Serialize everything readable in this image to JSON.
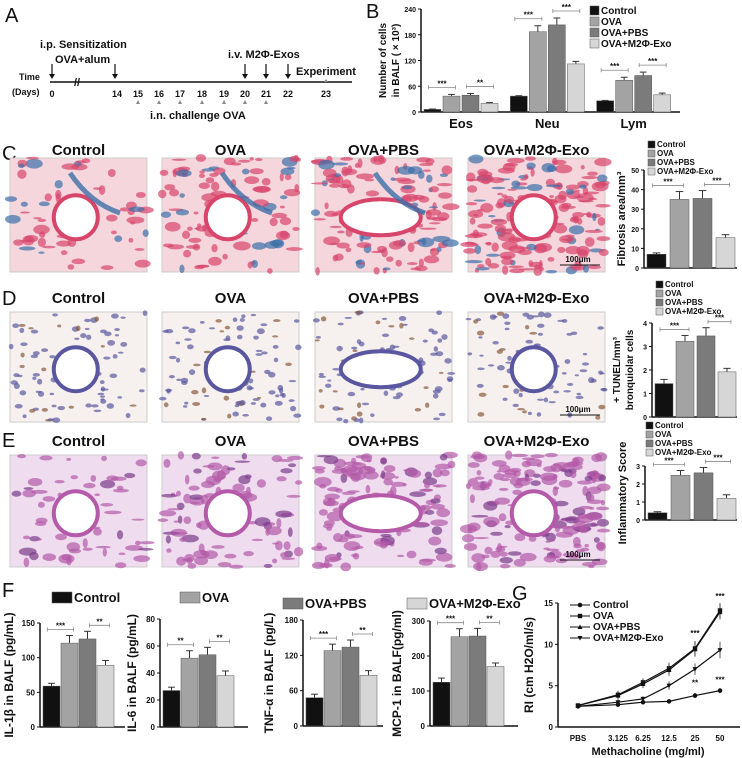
{
  "panel_letters": {
    "a": "A",
    "b": "B",
    "c": "C",
    "d": "D",
    "e": "E",
    "f": "F",
    "g": "G"
  },
  "timeline": {
    "sensitization": "i.p. Sensitization",
    "sensitization_agent": "OVA+alum",
    "treatment": "i.v. M2Φ-Exos",
    "experiment": "Experiment",
    "time_label": "Time",
    "days_label": "(Days)",
    "challenge": "i.n. challenge  OVA",
    "days": [
      "0",
      "14",
      "15",
      "16",
      "17",
      "18",
      "19",
      "20",
      "21",
      "22",
      "23"
    ]
  },
  "histology": {
    "groups": [
      "Control",
      "OVA",
      "OVA+PBS",
      "OVA+M2Φ-Exo"
    ],
    "scale_bar": "100μm",
    "rows": [
      {
        "stain": "masson",
        "colors": [
          "#f4d6dc",
          "#d8456b",
          "#3c6fa8"
        ]
      },
      {
        "stain": "tunel",
        "colors": [
          "#f6f1ee",
          "#5a57a0",
          "#8a5a3c"
        ]
      },
      {
        "stain": "he",
        "colors": [
          "#efdcef",
          "#b45aa8",
          "#7c3a8c"
        ]
      }
    ]
  },
  "colors": {
    "Control": "#111111",
    "OVA": "#a3a3a3",
    "OVA+PBS": "#7b7b7b",
    "OVA+M2Φ-Exo": "#d6d6d6"
  },
  "chart_data": [
    {
      "id": "B",
      "type": "bar",
      "categories": [
        "Eos",
        "Neu",
        "Lym"
      ],
      "series": [
        {
          "name": "Control",
          "values": [
            6,
            37,
            26
          ],
          "errors": [
            1,
            1,
            1
          ]
        },
        {
          "name": "OVA",
          "values": [
            37,
            187,
            74
          ],
          "errors": [
            4,
            14,
            7
          ]
        },
        {
          "name": "OVA+PBS",
          "values": [
            39,
            203,
            85
          ],
          "errors": [
            4,
            16,
            8
          ]
        },
        {
          "name": "OVA+M2Φ-Exo",
          "values": [
            20,
            112,
            40
          ],
          "errors": [
            2,
            6,
            4
          ]
        }
      ],
      "significance": [
        [
          "***",
          "**"
        ],
        [
          "***",
          "***"
        ],
        [
          "***",
          "***"
        ]
      ],
      "ylabel": [
        "Number of cells",
        "in BALF ( × 10³)"
      ],
      "ylim": [
        0,
        240
      ],
      "yticks": [
        0,
        60,
        120,
        180,
        240
      ],
      "legend": "top-right"
    },
    {
      "id": "C",
      "type": "bar",
      "categories": [
        "Control",
        "OVA",
        "OVA+PBS",
        "OVA+M2Φ-Exo"
      ],
      "values": [
        7,
        35,
        35.5,
        15.5
      ],
      "errors": [
        0.7,
        4,
        4,
        1.5
      ],
      "significance": [
        "***",
        "***"
      ],
      "ylabel": [
        "Fibrosis area/mm³"
      ],
      "ylim": [
        0,
        50
      ],
      "yticks": [
        0,
        10,
        20,
        30,
        40,
        50
      ],
      "legend": "top"
    },
    {
      "id": "D",
      "type": "bar",
      "categories": [
        "Control",
        "OVA",
        "OVA+PBS",
        "OVA+M2Φ-Exo"
      ],
      "values": [
        1.42,
        3.22,
        3.45,
        1.92
      ],
      "errors": [
        0.18,
        0.25,
        0.35,
        0.15
      ],
      "significance": [
        "***",
        "***"
      ],
      "ylabel": [
        "+ TUNEL/mm³",
        "bronquiolar cells"
      ],
      "ylim": [
        0,
        4
      ],
      "yticks": [
        0,
        1,
        2,
        3,
        4
      ],
      "legend": "top"
    },
    {
      "id": "E",
      "type": "bar",
      "categories": [
        "Control",
        "OVA",
        "OVA+PBS",
        "OVA+M2Φ-Exo"
      ],
      "values": [
        0.4,
        2.48,
        2.62,
        1.2
      ],
      "errors": [
        0.06,
        0.27,
        0.3,
        0.2
      ],
      "significance": [
        "***",
        "***"
      ],
      "ylabel": [
        "Inflammatory Score"
      ],
      "ylim": [
        0,
        3
      ],
      "yticks": [
        0,
        1,
        2,
        3
      ],
      "legend": "top"
    },
    {
      "id": "F1",
      "type": "bar",
      "categories": [
        "Control",
        "OVA",
        "OVA+PBS",
        "OVA+M2Φ-Exo"
      ],
      "values": [
        59,
        121,
        127,
        89
      ],
      "errors": [
        4,
        11,
        11,
        7
      ],
      "significance": [
        "***",
        "**"
      ],
      "ylabel": [
        "IL-1β in BALF (pg/mL)"
      ],
      "ylim": [
        0,
        150
      ],
      "yticks": [
        0,
        50,
        100,
        150
      ]
    },
    {
      "id": "F2",
      "type": "bar",
      "categories": [
        "Control",
        "OVA",
        "OVA+PBS",
        "OVA+M2Φ-Exo"
      ],
      "values": [
        27,
        51,
        53.5,
        38
      ],
      "errors": [
        2.5,
        5.5,
        5.5,
        3.5
      ],
      "significance": [
        "**",
        "**"
      ],
      "ylabel": [
        "IL-6 in BALF (pg/mL)"
      ],
      "ylim": [
        0,
        80
      ],
      "yticks": [
        0,
        20,
        40,
        60,
        80
      ]
    },
    {
      "id": "F3",
      "type": "bar",
      "categories": [
        "Control",
        "OVA",
        "OVA+PBS",
        "OVA+M2Φ-Exo"
      ],
      "values": [
        48,
        128,
        134,
        86
      ],
      "errors": [
        6,
        11,
        12,
        8
      ],
      "significance": [
        "***",
        "**"
      ],
      "ylabel": [
        "TNF-α in BALF (pg/L)"
      ],
      "ylim": [
        0,
        180
      ],
      "yticks": [
        0,
        60,
        120,
        180
      ]
    },
    {
      "id": "F4",
      "type": "bar",
      "categories": [
        "Control",
        "OVA",
        "OVA+PBS",
        "OVA+M2Φ-Exo"
      ],
      "values": [
        125,
        255,
        257,
        170
      ],
      "errors": [
        12,
        23,
        22,
        10
      ],
      "significance": [
        "***",
        "**"
      ],
      "ylabel": [
        "MCP-1 in BALF(pg/ml)"
      ],
      "ylim": [
        0,
        300
      ],
      "yticks": [
        0,
        100,
        200,
        300
      ],
      "legend": "top (shared across F)"
    },
    {
      "id": "G",
      "type": "line",
      "x": [
        "PBS",
        "3.125",
        "6.25",
        "12.5",
        "25",
        "50"
      ],
      "series": [
        {
          "name": "Control",
          "marker": "circle",
          "values": [
            2.5,
            2.7,
            3.0,
            3.1,
            3.8,
            4.4
          ],
          "errors": [
            0.2,
            0.2,
            0.2,
            0.2,
            0.3,
            0.3
          ]
        },
        {
          "name": "OVA",
          "marker": "square",
          "values": [
            2.6,
            3.9,
            5.4,
            7.1,
            9.5,
            14.1
          ],
          "errors": [
            0.2,
            0.5,
            0.5,
            0.7,
            0.9,
            0.9
          ]
        },
        {
          "name": "OVA+PBS",
          "marker": "triangle-up",
          "values": [
            2.6,
            3.8,
            5.2,
            6.9,
            9.4,
            13.9
          ],
          "errors": [
            0.2,
            0.5,
            0.5,
            0.7,
            0.9,
            0.9
          ]
        },
        {
          "name": "OVA+M2Φ-Exo",
          "marker": "triangle-down",
          "values": [
            2.5,
            3.0,
            3.4,
            5.0,
            7.0,
            9.3
          ],
          "errors": [
            0.2,
            0.3,
            0.3,
            0.5,
            0.7,
            1.0
          ]
        }
      ],
      "annotations": [
        {
          "x": "25",
          "text": "***"
        },
        {
          "x": "50",
          "text": "***"
        },
        {
          "x": "25",
          "text": "**"
        },
        {
          "x": "50",
          "text": "***"
        }
      ],
      "xlabel": "Methacholine (mg/ml)",
      "ylabel": "RI (cm H2O/ml/s)",
      "ylim": [
        0,
        15
      ],
      "yticks": [
        0,
        5,
        10,
        15
      ],
      "legend": "top-left"
    }
  ]
}
